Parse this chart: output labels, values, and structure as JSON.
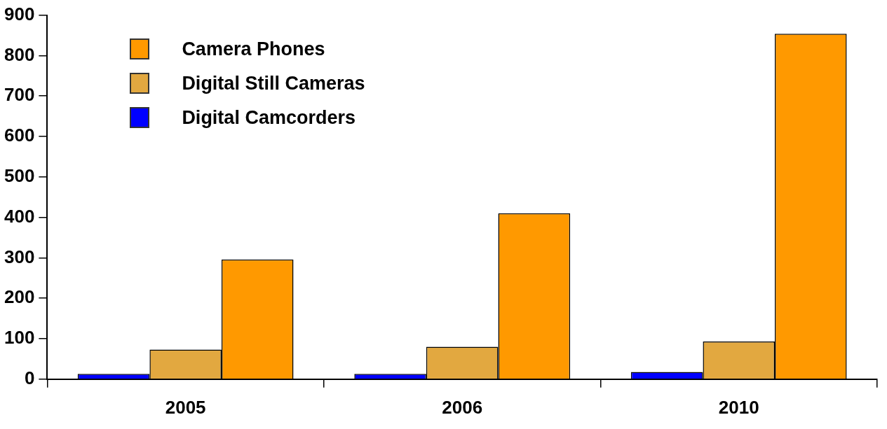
{
  "chart_data": {
    "type": "bar",
    "categories": [
      "2005",
      "2006",
      "2010"
    ],
    "series": [
      {
        "name": "Digital Camcorders",
        "color": "#0000ff",
        "values": [
          13,
          13,
          18
        ]
      },
      {
        "name": "Digital Still Cameras",
        "color": "#e2a840",
        "values": [
          73,
          80,
          93
        ]
      },
      {
        "name": "Camera Phones",
        "color": "#ff9900",
        "values": [
          296,
          410,
          854
        ]
      }
    ],
    "ylim": [
      0,
      900
    ],
    "yticks": [
      0,
      100,
      200,
      300,
      400,
      500,
      600,
      700,
      800,
      900
    ],
    "grid": false,
    "legend": "top left"
  }
}
